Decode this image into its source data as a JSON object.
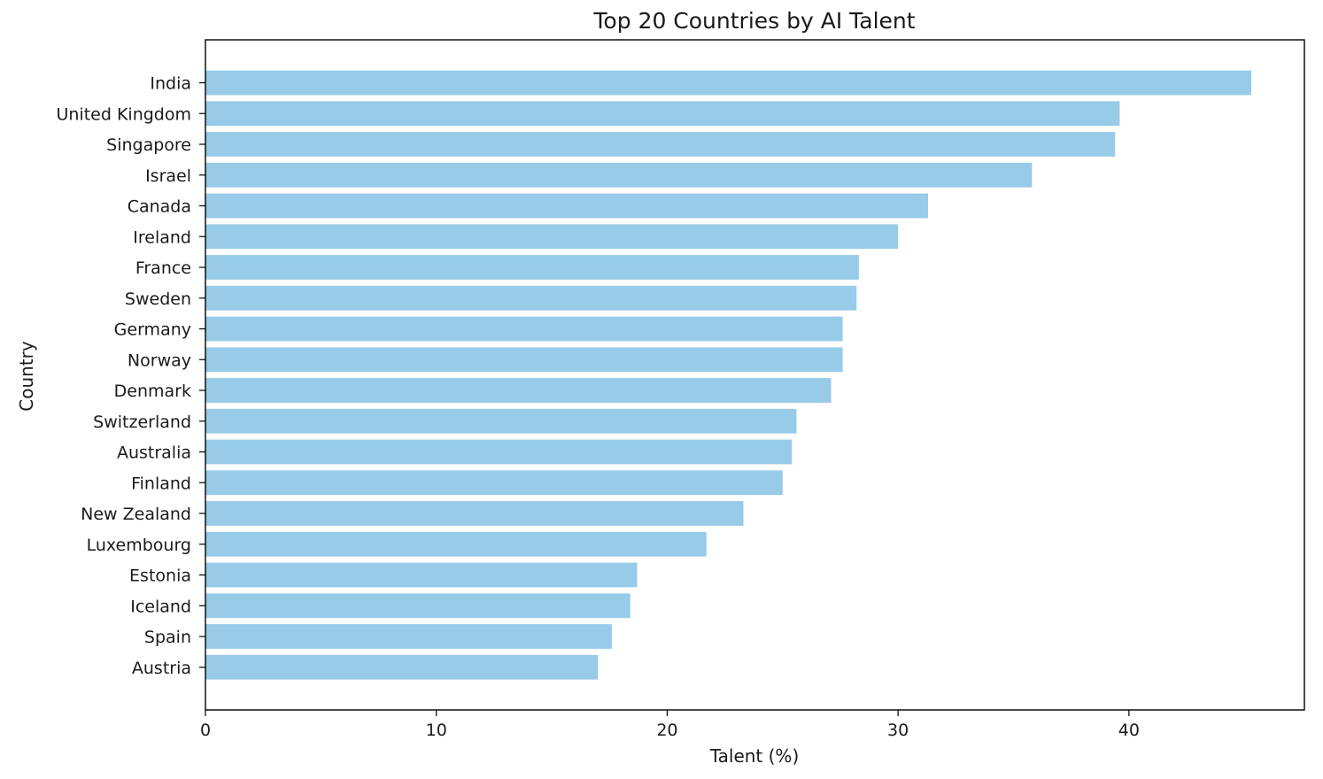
{
  "chart_data": {
    "type": "bar",
    "orientation": "horizontal",
    "title": "Top 20 Countries by AI Talent",
    "xlabel": "Talent (%)",
    "ylabel": "Country",
    "xlim": [
      0,
      47.6
    ],
    "xticks": [
      0,
      10,
      20,
      30,
      40
    ],
    "grid": false,
    "legend": "none",
    "bar_color": "#97cbe8",
    "categories": [
      "India",
      "United Kingdom",
      "Singapore",
      "Israel",
      "Canada",
      "Ireland",
      "France",
      "Sweden",
      "Germany",
      "Norway",
      "Denmark",
      "Switzerland",
      "Australia",
      "Finland",
      "New Zealand",
      "Luxembourg",
      "Estonia",
      "Iceland",
      "Spain",
      "Austria"
    ],
    "values": [
      45.3,
      39.6,
      39.4,
      35.8,
      31.3,
      30.0,
      28.3,
      28.2,
      27.6,
      27.6,
      27.1,
      25.6,
      25.4,
      25.0,
      23.3,
      21.7,
      18.7,
      18.4,
      17.6,
      17.0
    ]
  }
}
